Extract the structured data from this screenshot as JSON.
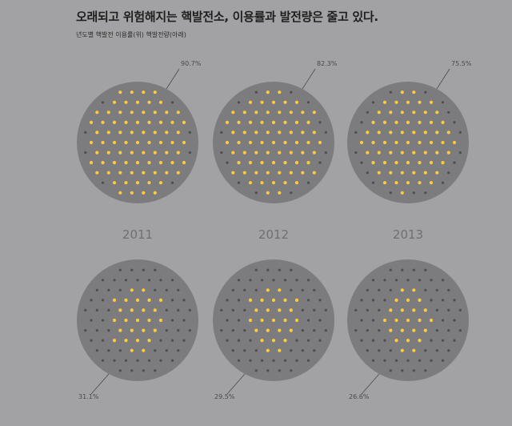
{
  "header": {
    "title": "오래되고 위험해지는 핵발전소, 이용률과 발전량은 줄고 있다.",
    "subtitle": "년도별 핵발전 이용률(위) 핵발전량(아래)"
  },
  "colors": {
    "background": "#a2a2a4",
    "disc": "#7c7c7e",
    "dot_on": "#ffcb3a",
    "dot_off": "#4e4e50",
    "leader": "#4a4a4c"
  },
  "chart_data": {
    "type": "dot-matrix",
    "categories": [
      "2011",
      "2012",
      "2013"
    ],
    "series": [
      {
        "values_label": [
          "90.7%",
          "82.3%",
          "75.5%"
        ],
        "values": [
          90.7,
          82.3,
          75.5
        ]
      },
      {
        "values_label": [
          "31.1%",
          "29.5%",
          "26.6%"
        ],
        "values": [
          31.1,
          29.5,
          26.6
        ]
      }
    ]
  }
}
